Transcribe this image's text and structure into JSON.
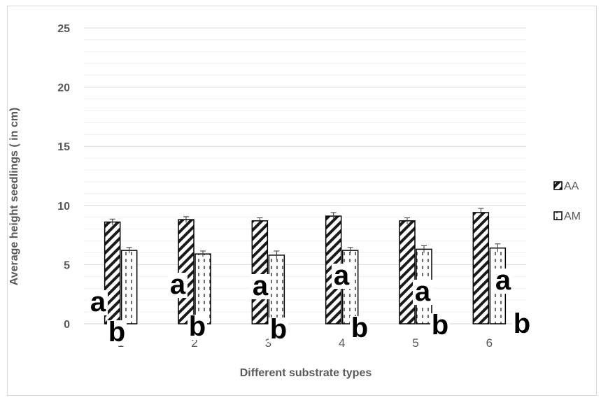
{
  "chart_data": {
    "type": "bar",
    "title": "",
    "xlabel": "Different substrate types",
    "ylabel": "Average height seedlings ( in cm)",
    "ylim": [
      0,
      25
    ],
    "yticks": [
      "0",
      "5",
      "10",
      "15",
      "20",
      "25"
    ],
    "categories": [
      "1",
      "2",
      "3",
      "4",
      "5",
      "6"
    ],
    "grid": true,
    "legend_position": "right",
    "series": [
      {
        "name": "AA",
        "values": [
          8.6,
          8.8,
          8.7,
          9.1,
          8.7,
          9.4
        ],
        "errors": [
          0.25,
          0.25,
          0.25,
          0.3,
          0.25,
          0.35
        ],
        "pattern": "diagonal-hatch"
      },
      {
        "name": "AM",
        "values": [
          6.2,
          5.9,
          5.8,
          6.2,
          6.3,
          6.4
        ],
        "errors": [
          0.25,
          0.25,
          0.35,
          0.25,
          0.3,
          0.35
        ],
        "pattern": "dashed-vertical"
      }
    ],
    "annotations": [
      {
        "text": "a",
        "category": "1",
        "series": "AA"
      },
      {
        "text": "b",
        "category": "1",
        "series": "AM"
      },
      {
        "text": "a",
        "category": "2",
        "series": "AA"
      },
      {
        "text": "b",
        "category": "2",
        "series": "AM"
      },
      {
        "text": "a",
        "category": "3",
        "series": "AA"
      },
      {
        "text": "b",
        "category": "3",
        "series": "AM"
      },
      {
        "text": "a",
        "category": "4",
        "series": "AA"
      },
      {
        "text": "b",
        "category": "4",
        "series": "AM"
      },
      {
        "text": "a",
        "category": "5",
        "series": "AA"
      },
      {
        "text": "b",
        "category": "5",
        "series": "AM"
      },
      {
        "text": "a",
        "category": "6",
        "series": "AA"
      },
      {
        "text": "b",
        "category": "6",
        "series": "AM"
      }
    ],
    "colors": {
      "axis": "#d9d9d9",
      "grid": "#e6e6e6",
      "text": "#595959",
      "bar_stroke": "#000000",
      "label": "#000000"
    }
  }
}
